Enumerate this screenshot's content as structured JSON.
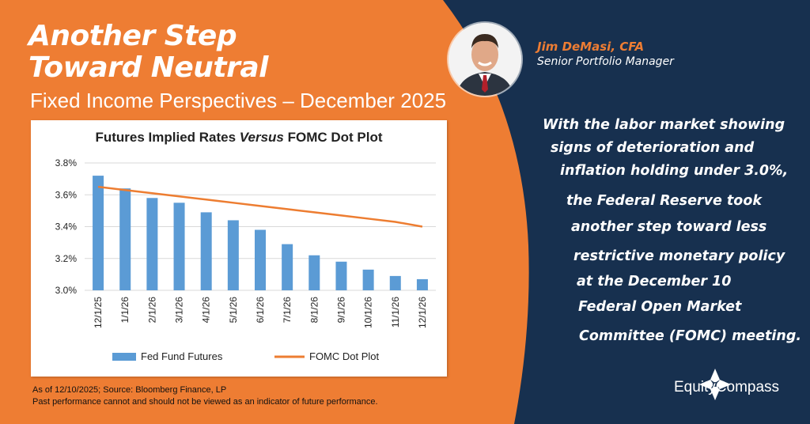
{
  "header": {
    "title_line1": "Another Step",
    "title_line2": "Toward Neutral",
    "subtitle": "Fixed Income Perspectives – December 2025"
  },
  "author": {
    "name": "Jim DeMasi, CFA",
    "role": "Senior Portfolio Manager"
  },
  "quote_lines": [
    "With the labor market showing",
    "signs of deterioration and",
    "inflation holding under 3.0%,",
    "the Federal Reserve took",
    "another step toward less",
    "restrictive monetary policy",
    "at the December 10",
    "Federal Open Market",
    "Committee (FOMC) meeting."
  ],
  "footnote": {
    "line1": "As of 12/10/2025; Source: Bloomberg Finance, LP",
    "line2": "Past performance cannot and should not be viewed as an indicator of future performance."
  },
  "brand": {
    "name": "EquityCompass",
    "colors": {
      "orange": "#ee7d33",
      "navy": "#17304f",
      "bar": "#5b9bd5",
      "line": "#ed7d31"
    }
  },
  "chart_data": {
    "type": "bar",
    "title_plain": "Futures Implied Rates ",
    "title_italic": "Versus",
    "title_end": " FOMC Dot Plot",
    "categories": [
      "12/1/25",
      "1/1/26",
      "2/1/26",
      "3/1/26",
      "4/1/26",
      "5/1/26",
      "6/1/26",
      "7/1/26",
      "8/1/26",
      "9/1/26",
      "10/1/26",
      "11/1/26",
      "12/1/26"
    ],
    "series": [
      {
        "name": "Fed Fund Futures",
        "type": "bar",
        "color": "#5b9bd5",
        "values": [
          3.72,
          3.64,
          3.58,
          3.55,
          3.49,
          3.44,
          3.38,
          3.29,
          3.22,
          3.18,
          3.13,
          3.09,
          3.07
        ]
      },
      {
        "name": "FOMC Dot Plot",
        "type": "line",
        "color": "#ed7d31",
        "values": [
          3.65,
          3.63,
          3.61,
          3.59,
          3.57,
          3.55,
          3.53,
          3.51,
          3.49,
          3.47,
          3.45,
          3.43,
          3.4
        ]
      }
    ],
    "ylim": [
      3.0,
      3.8
    ],
    "yticks": [
      "3.0%",
      "3.2%",
      "3.4%",
      "3.6%",
      "3.8%"
    ],
    "ytick_values": [
      3.0,
      3.2,
      3.4,
      3.6,
      3.8
    ],
    "grid": true,
    "legend": "bottom"
  }
}
